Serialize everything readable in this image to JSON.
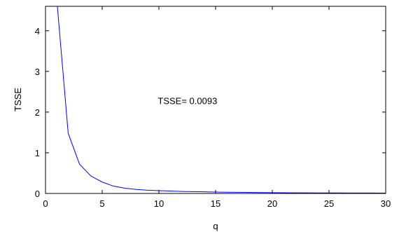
{
  "chart_data": {
    "type": "line",
    "title": "",
    "xlabel": "q",
    "ylabel": "TSSE",
    "xlim": [
      0,
      30
    ],
    "ylim": [
      0,
      4.6
    ],
    "xticks": [
      0,
      5,
      10,
      15,
      20,
      25,
      30
    ],
    "xtick_labels": [
      "0",
      "5",
      "10",
      "15",
      "20",
      "25",
      "30"
    ],
    "yticks": [
      0,
      1,
      2,
      3,
      4
    ],
    "ytick_labels": [
      "0",
      "1",
      "2",
      "3",
      "4"
    ],
    "grid": false,
    "line_color": "#0000ff",
    "annotation": {
      "text": "TSSE= 0.0093",
      "x": 9.9,
      "y": 2.28
    },
    "series": [
      {
        "x": [
          1,
          2,
          3,
          4,
          5,
          6,
          7,
          8,
          9,
          10,
          11,
          12,
          13,
          14,
          15,
          16,
          17,
          18,
          19,
          20,
          21,
          22,
          23,
          24,
          25,
          26,
          27,
          28,
          29,
          30
        ],
        "values": [
          4.75,
          1.48,
          0.72,
          0.43,
          0.28,
          0.18,
          0.13,
          0.1,
          0.08,
          0.07,
          0.06,
          0.05,
          0.045,
          0.04,
          0.035,
          0.03,
          0.028,
          0.025,
          0.022,
          0.02,
          0.018,
          0.016,
          0.015,
          0.014,
          0.013,
          0.012,
          0.011,
          0.0105,
          0.0098,
          0.0093
        ]
      }
    ]
  }
}
